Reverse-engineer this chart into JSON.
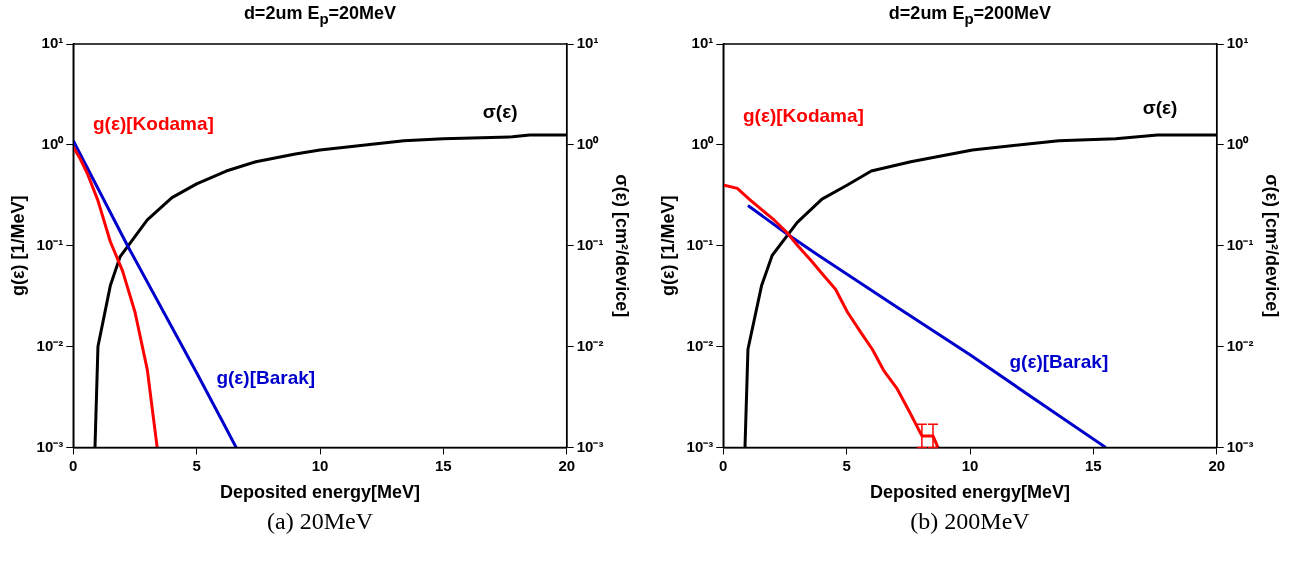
{
  "chart_data": [
    {
      "type": "line",
      "title": "d=2um E$_{p}$=20MeV",
      "xlabel": "Deposited energy[MeV]",
      "ylabel": "g(ε) [1/MeV]",
      "y2label": "σ(ε) [cm²/device]",
      "annotations": [
        "(a) 20MeV"
      ],
      "xlim": [
        0,
        20
      ],
      "xticks": [
        0,
        5,
        10,
        15,
        20
      ],
      "ylim": [
        0.001,
        10
      ],
      "yticks": [
        {
          "value": 0.001,
          "label": "10⁻³"
        },
        {
          "value": 0.01,
          "label": "10⁻²"
        },
        {
          "value": 0.1,
          "label": "10⁻¹"
        },
        {
          "value": 1,
          "label": "10⁰"
        },
        {
          "value": 10,
          "label": "10¹"
        }
      ],
      "log": "y",
      "grid": false,
      "legend": false,
      "marker": "none",
      "line_style": "solid",
      "series": [
        {
          "name": "g(ε)[Kodama]",
          "color": "#ff0000",
          "x": [
            0,
            0.25,
            0.57,
            1,
            1.5,
            2,
            2.5,
            3,
            3.4
          ],
          "values": [
            0.95,
            0.75,
            0.52,
            0.28,
            0.11,
            0.056,
            0.022,
            0.0059,
            0.001
          ]
        },
        {
          "name": "g(ε)[Barak]",
          "color": "#0000cc",
          "x": [
            0,
            2.2,
            5,
            6,
            6.6
          ],
          "values": [
            1.1,
            0.1,
            0.0055,
            0.0019,
            0.001
          ]
        },
        {
          "name": "σ(ε)",
          "color": "#000000",
          "x": [
            0.88,
            1,
            1.5,
            1.9,
            3,
            4,
            5,
            6.2,
            7.4,
            9,
            10,
            13.4,
            15,
            17.8,
            18.5,
            20
          ],
          "values": [
            0.001,
            0.01,
            0.04,
            0.078,
            0.18,
            0.3,
            0.41,
            0.55,
            0.68,
            0.81,
            0.89,
            1.1,
            1.15,
            1.2,
            1.25,
            1.25
          ]
        }
      ]
    },
    {
      "type": "line",
      "title": "d=2um E$_{p}$=200MeV",
      "xlabel": "Deposited energy[MeV]",
      "ylabel": "g(ε) [1/MeV]",
      "y2label": "σ(ε) [cm²/device]",
      "annotations": [
        "(b) 200MeV"
      ],
      "xlim": [
        0,
        20
      ],
      "xticks": [
        0,
        5,
        10,
        15,
        20
      ],
      "ylim": [
        0.001,
        10
      ],
      "yticks": [
        {
          "value": 0.001,
          "label": "10⁻³"
        },
        {
          "value": 0.01,
          "label": "10⁻²"
        },
        {
          "value": 0.1,
          "label": "10⁻¹"
        },
        {
          "value": 1,
          "label": "10⁰"
        },
        {
          "value": 10,
          "label": "10¹"
        }
      ],
      "log": "y",
      "grid": false,
      "legend": false,
      "marker": "none",
      "line_style": "solid",
      "series": [
        {
          "name": "g(ε)[Kodama]",
          "color": "#ff0000",
          "x": [
            0,
            0.57,
            1.05,
            1.53,
            2.06,
            2.58,
            3.02,
            3.54,
            4,
            4.55,
            5.03,
            5.56,
            6.04,
            6.52,
            7.05,
            7.53,
            8.05,
            8.5,
            8.7
          ],
          "values": [
            0.4,
            0.37,
            0.29,
            0.23,
            0.18,
            0.135,
            0.1,
            0.072,
            0.053,
            0.037,
            0.022,
            0.014,
            0.0094,
            0.0057,
            0.0038,
            0.0023,
            0.0013,
            0.0013,
            0.001
          ],
          "errors": [
            null,
            null,
            null,
            null,
            null,
            null,
            null,
            null,
            null,
            null,
            null,
            null,
            null,
            null,
            null,
            null,
            [
              0.001,
              0.0017
            ],
            [
              0.001,
              0.0017
            ],
            null
          ]
        },
        {
          "name": "g(ε)[Barak]",
          "color": "#0000cc",
          "x": [
            1,
            2.6,
            3.7,
            7,
            10,
            13,
            15.5
          ],
          "values": [
            0.25,
            0.13,
            0.085,
            0.025,
            0.0083,
            0.0026,
            0.001
          ]
        },
        {
          "name": "σ(ε)",
          "color": "#000000",
          "x": [
            0.88,
            1,
            1.55,
            1.98,
            3,
            4,
            5.03,
            6,
            7.6,
            10.1,
            13.6,
            15.9,
            17.6,
            20
          ],
          "values": [
            0.001,
            0.0094,
            0.04,
            0.08,
            0.17,
            0.29,
            0.4,
            0.55,
            0.68,
            0.89,
            1.1,
            1.15,
            1.25,
            1.25
          ]
        }
      ]
    }
  ]
}
